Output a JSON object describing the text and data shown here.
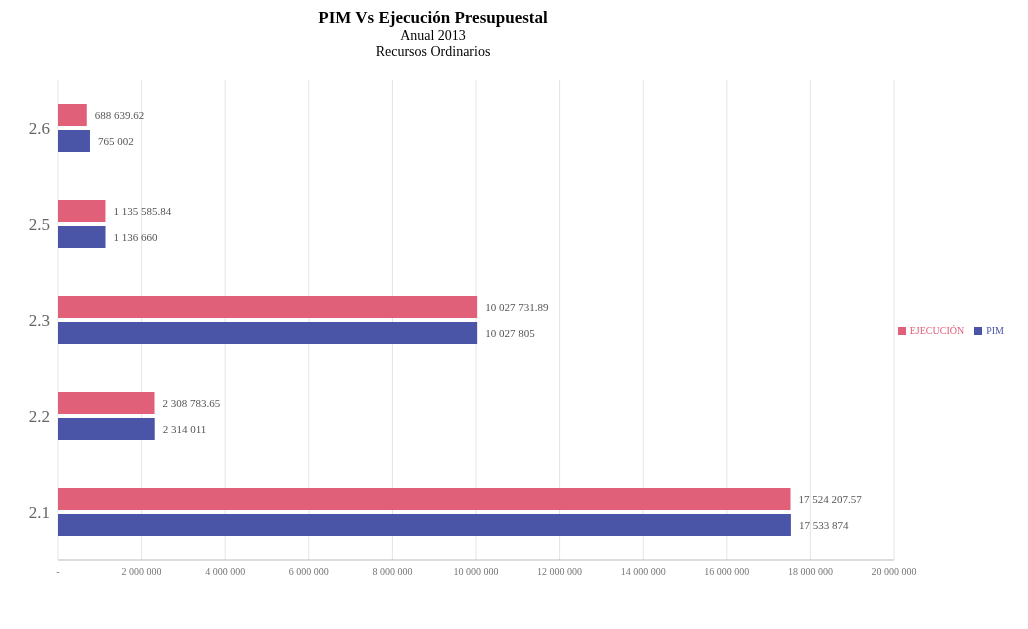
{
  "chart_data": {
    "type": "bar",
    "orientation": "horizontal",
    "title": "PIM Vs Ejecución Presupuestal",
    "subtitle": "Anual 2013\nRecursos Ordinarios",
    "categories": [
      "2.6",
      "2.5",
      "2.3",
      "2.2",
      "2.1"
    ],
    "series": [
      {
        "name": "EJECUCIÓN",
        "color": "#e0607a",
        "values": [
          688639.62,
          1135585.84,
          10027731.89,
          2308783.65,
          17524207.57
        ],
        "value_labels": [
          "688 639.62",
          "1 135 585.84",
          "10 027 731.89",
          "2 308 783.65",
          "17 524 207.57"
        ]
      },
      {
        "name": "PIM",
        "color": "#4a55a8",
        "values": [
          765002,
          1136660,
          10027805,
          2314011,
          17533874
        ],
        "value_labels": [
          "765 002",
          "1 136 660",
          "10 027 805",
          "2 314 011",
          "17 533 874"
        ]
      }
    ],
    "xlim": [
      0,
      20000000
    ],
    "xticks": [
      {
        "value": 0,
        "label": "-"
      },
      {
        "value": 2000000,
        "label": "2 000 000"
      },
      {
        "value": 4000000,
        "label": "4 000 000"
      },
      {
        "value": 6000000,
        "label": "6 000 000"
      },
      {
        "value": 8000000,
        "label": "8 000 000"
      },
      {
        "value": 10000000,
        "label": "10 000 000"
      },
      {
        "value": 12000000,
        "label": "12 000 000"
      },
      {
        "value": 14000000,
        "label": "14 000 000"
      },
      {
        "value": 16000000,
        "label": "16 000 000"
      },
      {
        "value": 18000000,
        "label": "18 000 000"
      },
      {
        "value": 20000000,
        "label": "20 000 000"
      }
    ],
    "grid": "x",
    "legend": "right"
  }
}
